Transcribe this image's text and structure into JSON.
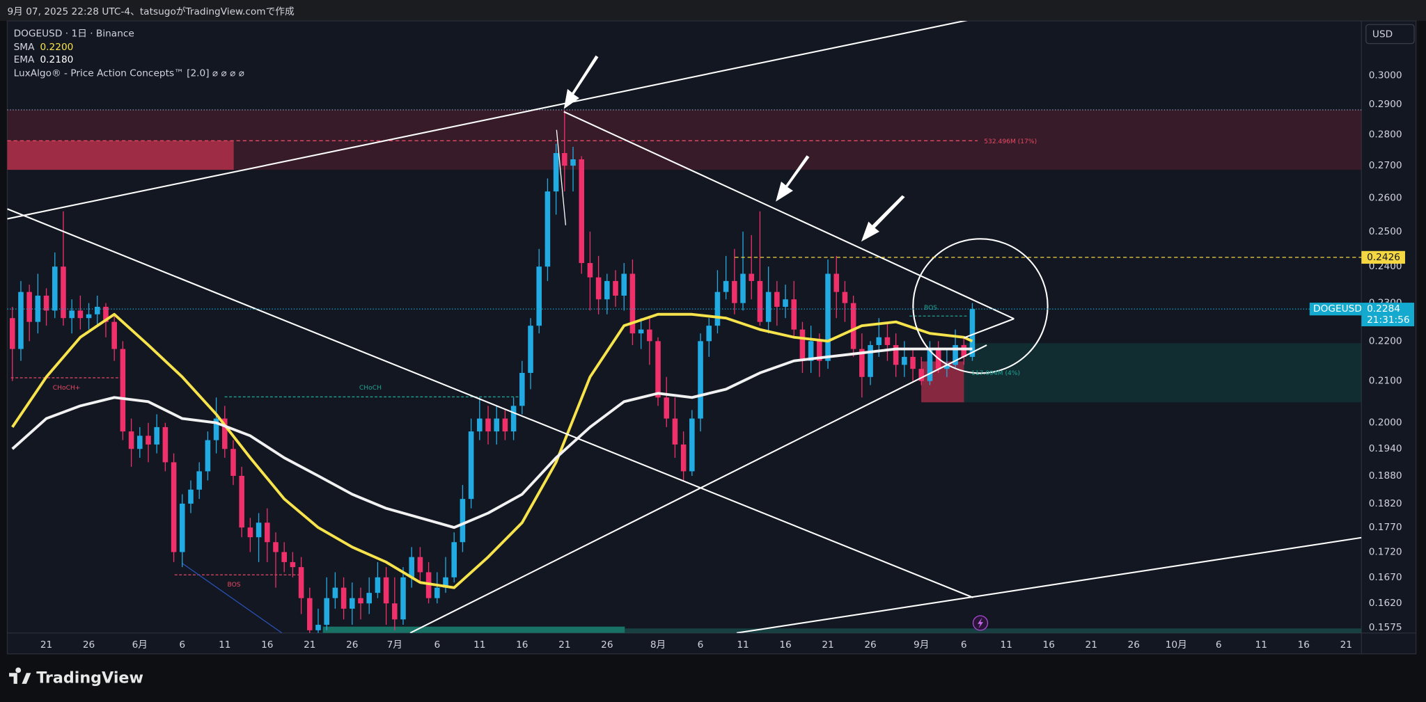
{
  "header": {
    "caption": "9月 07, 2025 22:28 UTC-4、tatsugoがTradingView.comで作成"
  },
  "chart_data": {
    "type": "candlestick",
    "symbol": "DOGEUSD · 1日 · Binance",
    "indicator": "LuxAlgo® - Price Action Concepts™ [2.0] ⌀ ⌀ ⌀ ⌀",
    "currency": "USD",
    "log_scale": true,
    "grid": false,
    "up_color": "#22abe3",
    "down_color": "#f0306a",
    "open": [
      0.226,
      0.218,
      0.233,
      0.225,
      0.232,
      0.228,
      0.24,
      0.226,
      0.228,
      0.226,
      0.227,
      0.229,
      0.225,
      0.218,
      0.198,
      0.194,
      0.197,
      0.195,
      0.199,
      0.191,
      0.172,
      0.182,
      0.185,
      0.189,
      0.196,
      0.201,
      0.194,
      0.188,
      0.177,
      0.175,
      0.178,
      0.174,
      0.172,
      0.17,
      0.169,
      0.163,
      0.157,
      0.158,
      0.163,
      0.165,
      0.161,
      0.163,
      0.162,
      0.164,
      0.167,
      0.162,
      0.159,
      0.167,
      0.171,
      0.168,
      0.163,
      0.165,
      0.167,
      0.174,
      0.183,
      0.198,
      0.201,
      0.198,
      0.201,
      0.198,
      0.204,
      0.212,
      0.224,
      0.24,
      0.262,
      0.274,
      0.27,
      0.272,
      0.241,
      0.237,
      0.231,
      0.236,
      0.232,
      0.238,
      0.222,
      0.223,
      0.22,
      0.206,
      0.201,
      0.195,
      0.189,
      0.201,
      0.22,
      0.224,
      0.233,
      0.236,
      0.23,
      0.238,
      0.236,
      0.225,
      0.233,
      0.229,
      0.231,
      0.223,
      0.215,
      0.22,
      0.215,
      0.238,
      0.233,
      0.23,
      0.218,
      0.211,
      0.219,
      0.221,
      0.219,
      0.214,
      0.216,
      0.213,
      0.21,
      0.218,
      0.213,
      0.214,
      0.219,
      0.216
    ],
    "high": [
      0.229,
      0.236,
      0.235,
      0.238,
      0.234,
      0.244,
      0.256,
      0.231,
      0.232,
      0.23,
      0.232,
      0.23,
      0.227,
      0.22,
      0.201,
      0.199,
      0.2,
      0.202,
      0.2,
      0.193,
      0.184,
      0.187,
      0.191,
      0.198,
      0.206,
      0.204,
      0.196,
      0.19,
      0.179,
      0.18,
      0.181,
      0.176,
      0.174,
      0.172,
      0.171,
      0.165,
      0.161,
      0.167,
      0.168,
      0.167,
      0.166,
      0.165,
      0.167,
      0.17,
      0.169,
      0.167,
      0.169,
      0.173,
      0.173,
      0.17,
      0.168,
      0.171,
      0.176,
      0.186,
      0.201,
      0.206,
      0.204,
      0.204,
      0.203,
      0.206,
      0.215,
      0.226,
      0.245,
      0.266,
      0.277,
      0.288,
      0.276,
      0.273,
      0.25,
      0.243,
      0.238,
      0.239,
      0.241,
      0.242,
      0.226,
      0.226,
      0.221,
      0.211,
      0.206,
      0.198,
      0.203,
      0.222,
      0.226,
      0.239,
      0.243,
      0.245,
      0.25,
      0.249,
      0.256,
      0.24,
      0.236,
      0.235,
      0.236,
      0.225,
      0.224,
      0.222,
      0.242,
      0.243,
      0.236,
      0.232,
      0.222,
      0.22,
      0.226,
      0.225,
      0.222,
      0.22,
      0.218,
      0.216,
      0.22,
      0.22,
      0.218,
      0.223,
      0.221,
      0.23
    ],
    "low": [
      0.21,
      0.215,
      0.22,
      0.222,
      0.224,
      0.226,
      0.224,
      0.222,
      0.223,
      0.223,
      0.224,
      0.221,
      0.215,
      0.196,
      0.19,
      0.192,
      0.191,
      0.193,
      0.189,
      0.17,
      0.169,
      0.18,
      0.183,
      0.187,
      0.193,
      0.192,
      0.186,
      0.175,
      0.172,
      0.17,
      0.17,
      0.165,
      0.168,
      0.167,
      0.16,
      0.156,
      0.156,
      0.157,
      0.161,
      0.159,
      0.158,
      0.159,
      0.16,
      0.163,
      0.158,
      0.157,
      0.158,
      0.165,
      0.166,
      0.162,
      0.162,
      0.164,
      0.166,
      0.172,
      0.181,
      0.196,
      0.195,
      0.195,
      0.196,
      0.196,
      0.202,
      0.208,
      0.222,
      0.236,
      0.255,
      0.262,
      0.262,
      0.238,
      0.228,
      0.227,
      0.227,
      0.229,
      0.228,
      0.219,
      0.218,
      0.214,
      0.204,
      0.199,
      0.192,
      0.187,
      0.188,
      0.198,
      0.216,
      0.222,
      0.231,
      0.227,
      0.228,
      0.231,
      0.224,
      0.222,
      0.224,
      0.226,
      0.221,
      0.212,
      0.212,
      0.211,
      0.213,
      0.226,
      0.225,
      0.216,
      0.206,
      0.209,
      0.216,
      0.215,
      0.211,
      0.211,
      0.21,
      0.209,
      0.209,
      0.212,
      0.211,
      0.213,
      0.214,
      0.215
    ],
    "close": [
      0.218,
      0.233,
      0.225,
      0.232,
      0.228,
      0.24,
      0.226,
      0.228,
      0.226,
      0.227,
      0.229,
      0.225,
      0.218,
      0.198,
      0.194,
      0.197,
      0.195,
      0.199,
      0.191,
      0.172,
      0.182,
      0.185,
      0.189,
      0.196,
      0.201,
      0.194,
      0.188,
      0.177,
      0.175,
      0.178,
      0.174,
      0.172,
      0.17,
      0.169,
      0.163,
      0.157,
      0.158,
      0.163,
      0.165,
      0.161,
      0.163,
      0.162,
      0.164,
      0.167,
      0.162,
      0.159,
      0.167,
      0.171,
      0.168,
      0.163,
      0.165,
      0.167,
      0.174,
      0.183,
      0.198,
      0.201,
      0.198,
      0.201,
      0.198,
      0.204,
      0.212,
      0.224,
      0.24,
      0.262,
      0.274,
      0.27,
      0.272,
      0.241,
      0.237,
      0.231,
      0.236,
      0.232,
      0.238,
      0.222,
      0.223,
      0.22,
      0.206,
      0.201,
      0.195,
      0.189,
      0.201,
      0.22,
      0.224,
      0.233,
      0.236,
      0.23,
      0.238,
      0.236,
      0.225,
      0.233,
      0.229,
      0.231,
      0.223,
      0.215,
      0.22,
      0.215,
      0.238,
      0.233,
      0.23,
      0.218,
      0.211,
      0.219,
      0.221,
      0.219,
      0.214,
      0.216,
      0.213,
      0.21,
      0.218,
      0.213,
      0.214,
      0.219,
      0.216,
      0.2284
    ],
    "series": [
      {
        "name": "SMA",
        "color": "#f7e34b",
        "legend_label": "0.2200",
        "x": [
          0,
          4,
          8,
          12,
          16,
          20,
          24,
          28,
          32,
          36,
          40,
          44,
          48,
          52,
          56,
          60,
          64,
          68,
          72,
          76,
          80,
          84,
          88,
          92,
          96,
          100,
          104,
          108,
          112,
          113
        ],
        "values": [
          0.199,
          0.211,
          0.221,
          0.227,
          0.219,
          0.211,
          0.202,
          0.192,
          0.183,
          0.177,
          0.173,
          0.17,
          0.166,
          0.165,
          0.171,
          0.178,
          0.191,
          0.211,
          0.224,
          0.227,
          0.227,
          0.226,
          0.223,
          0.221,
          0.22,
          0.224,
          0.225,
          0.222,
          0.221,
          0.22
        ]
      },
      {
        "name": "EMA",
        "color": "#f2f2f2",
        "legend_label": "0.2180",
        "x": [
          0,
          4,
          8,
          12,
          16,
          20,
          24,
          28,
          32,
          36,
          40,
          44,
          48,
          52,
          56,
          60,
          64,
          68,
          72,
          76,
          80,
          84,
          88,
          92,
          96,
          100,
          104,
          108,
          112,
          113
        ],
        "values": [
          0.194,
          0.201,
          0.204,
          0.206,
          0.205,
          0.201,
          0.2,
          0.197,
          0.192,
          0.188,
          0.184,
          0.181,
          0.179,
          0.177,
          0.18,
          0.184,
          0.192,
          0.199,
          0.205,
          0.207,
          0.206,
          0.208,
          0.212,
          0.215,
          0.216,
          0.217,
          0.218,
          0.218,
          0.218,
          0.218
        ]
      }
    ],
    "xlim": [
      -0.6,
      158.8
    ],
    "xticks": [
      {
        "value": 4,
        "label": "21"
      },
      {
        "value": 9,
        "label": "26"
      },
      {
        "value": 15,
        "label": "6月"
      },
      {
        "value": 20,
        "label": "6"
      },
      {
        "value": 25,
        "label": "11"
      },
      {
        "value": 30,
        "label": "16"
      },
      {
        "value": 35,
        "label": "21"
      },
      {
        "value": 40,
        "label": "26"
      },
      {
        "value": 45,
        "label": "7月"
      },
      {
        "value": 50,
        "label": "6"
      },
      {
        "value": 55,
        "label": "11"
      },
      {
        "value": 60,
        "label": "16"
      },
      {
        "value": 65,
        "label": "21"
      },
      {
        "value": 70,
        "label": "26"
      },
      {
        "value": 76,
        "label": "8月"
      },
      {
        "value": 81,
        "label": "6"
      },
      {
        "value": 86,
        "label": "11"
      },
      {
        "value": 91,
        "label": "16"
      },
      {
        "value": 96,
        "label": "21"
      },
      {
        "value": 101,
        "label": "26"
      },
      {
        "value": 107,
        "label": "9月"
      },
      {
        "value": 112,
        "label": "6"
      },
      {
        "value": 117,
        "label": "11"
      },
      {
        "value": 122,
        "label": "16"
      },
      {
        "value": 127,
        "label": "21"
      },
      {
        "value": 132,
        "label": "26"
      },
      {
        "value": 137,
        "label": "10月"
      },
      {
        "value": 142,
        "label": "6"
      },
      {
        "value": 147,
        "label": "11"
      },
      {
        "value": 152,
        "label": "16"
      },
      {
        "value": 157,
        "label": "21"
      }
    ],
    "ylim": [
      0.1565,
      0.3197
    ],
    "yticks": [
      {
        "value": 0.3,
        "label": "0.3000"
      },
      {
        "value": 0.29,
        "label": "0.2900"
      },
      {
        "value": 0.28,
        "label": "0.2800"
      },
      {
        "value": 0.27,
        "label": "0.2700"
      },
      {
        "value": 0.26,
        "label": "0.2600"
      },
      {
        "value": 0.25,
        "label": "0.2500"
      },
      {
        "value": 0.24,
        "label": "0.2400"
      },
      {
        "value": 0.23,
        "label": "0.2300"
      },
      {
        "value": 0.22,
        "label": "0.2200"
      },
      {
        "value": 0.21,
        "label": "0.2100"
      },
      {
        "value": 0.2,
        "label": "0.2000"
      },
      {
        "value": 0.194,
        "label": "0.1940"
      },
      {
        "value": 0.188,
        "label": "0.1880"
      },
      {
        "value": 0.182,
        "label": "0.1820"
      },
      {
        "value": 0.177,
        "label": "0.1770"
      },
      {
        "value": 0.172,
        "label": "0.1720"
      },
      {
        "value": 0.167,
        "label": "0.1670"
      },
      {
        "value": 0.162,
        "label": "0.1620"
      },
      {
        "value": 0.1575,
        "label": "0.1575"
      }
    ],
    "level": {
      "value": 0.2426,
      "label": "0.2426",
      "color": "#f5d742"
    },
    "last_price": {
      "value": 0.2284,
      "label": "0.2284",
      "tag": "DOGEUSD",
      "countdown": "21:31:56",
      "color": "#14a9cf"
    }
  },
  "annotations": [
    "532.496M (17%)",
    "117.094M (4%)",
    "CHoCH+",
    "CHoCH",
    "BOS",
    "BOS"
  ],
  "footer": {
    "brand": "TradingView"
  }
}
